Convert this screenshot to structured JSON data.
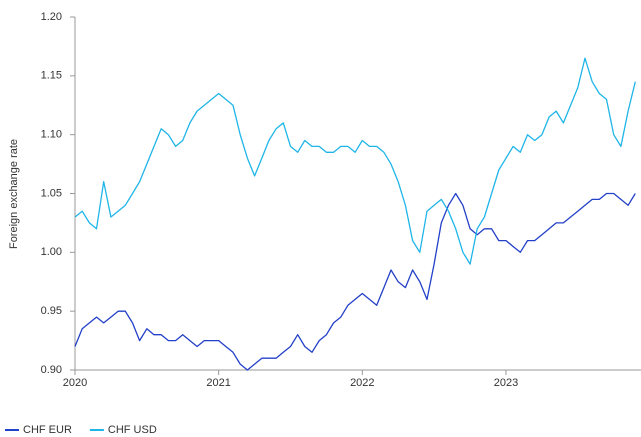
{
  "chart_data": {
    "type": "line",
    "y_label": "Foreign exchange rate",
    "x": [
      2020.0,
      2020.05,
      2020.1,
      2020.15,
      2020.2,
      2020.25,
      2020.3,
      2020.35,
      2020.4,
      2020.45,
      2020.5,
      2020.55,
      2020.6,
      2020.65,
      2020.7,
      2020.75,
      2020.8,
      2020.85,
      2020.9,
      2020.95,
      2021.0,
      2021.05,
      2021.1,
      2021.15,
      2021.2,
      2021.25,
      2021.3,
      2021.35,
      2021.4,
      2021.45,
      2021.5,
      2021.55,
      2021.6,
      2021.65,
      2021.7,
      2021.75,
      2021.8,
      2021.85,
      2021.9,
      2021.95,
      2022.0,
      2022.05,
      2022.1,
      2022.15,
      2022.2,
      2022.25,
      2022.3,
      2022.35,
      2022.4,
      2022.45,
      2022.5,
      2022.55,
      2022.6,
      2022.65,
      2022.7,
      2022.75,
      2022.8,
      2022.85,
      2022.9,
      2022.95,
      2023.0,
      2023.05,
      2023.1,
      2023.15,
      2023.2,
      2023.25,
      2023.3,
      2023.35,
      2023.4,
      2023.45,
      2023.5,
      2023.55,
      2023.6,
      2023.65,
      2023.7,
      2023.75,
      2023.8,
      2023.85,
      2023.9
    ],
    "series": [
      {
        "name": "CHF EUR",
        "color": "#2340c8",
        "values": [
          0.92,
          0.935,
          0.94,
          0.945,
          0.94,
          0.945,
          0.95,
          0.95,
          0.94,
          0.925,
          0.935,
          0.93,
          0.93,
          0.925,
          0.925,
          0.93,
          0.925,
          0.92,
          0.925,
          0.925,
          0.925,
          0.92,
          0.915,
          0.905,
          0.9,
          0.905,
          0.91,
          0.91,
          0.91,
          0.915,
          0.92,
          0.93,
          0.92,
          0.915,
          0.925,
          0.93,
          0.94,
          0.945,
          0.955,
          0.96,
          0.965,
          0.96,
          0.955,
          0.97,
          0.985,
          0.975,
          0.97,
          0.985,
          0.975,
          0.96,
          0.99,
          1.025,
          1.04,
          1.05,
          1.04,
          1.02,
          1.015,
          1.02,
          1.02,
          1.01,
          1.01,
          1.005,
          1.0,
          1.01,
          1.01,
          1.015,
          1.02,
          1.025,
          1.025,
          1.03,
          1.035,
          1.04,
          1.045,
          1.045,
          1.05,
          1.05,
          1.045,
          1.04,
          1.05
        ]
      },
      {
        "name": "CHF USD",
        "color": "#1fb5e8",
        "values": [
          1.03,
          1.035,
          1.025,
          1.02,
          1.06,
          1.03,
          1.035,
          1.04,
          1.05,
          1.06,
          1.075,
          1.09,
          1.105,
          1.1,
          1.09,
          1.095,
          1.11,
          1.12,
          1.125,
          1.13,
          1.135,
          1.13,
          1.125,
          1.1,
          1.08,
          1.065,
          1.08,
          1.095,
          1.105,
          1.11,
          1.09,
          1.085,
          1.095,
          1.09,
          1.09,
          1.085,
          1.085,
          1.09,
          1.09,
          1.085,
          1.095,
          1.09,
          1.09,
          1.085,
          1.075,
          1.06,
          1.04,
          1.01,
          1.0,
          1.035,
          1.04,
          1.045,
          1.035,
          1.02,
          1.0,
          0.99,
          1.02,
          1.03,
          1.05,
          1.07,
          1.08,
          1.09,
          1.085,
          1.1,
          1.095,
          1.1,
          1.115,
          1.12,
          1.11,
          1.125,
          1.14,
          1.165,
          1.145,
          1.135,
          1.13,
          1.1,
          1.09,
          1.12,
          1.145
        ]
      }
    ],
    "xlim": [
      2020,
      2023.94
    ],
    "xticks": [
      2020,
      2021,
      2022,
      2023
    ],
    "ylim": [
      0.9,
      1.2
    ],
    "yticks": [
      {
        "value": 0.9,
        "label": "0.90"
      },
      0.95,
      {
        "value": 1.0,
        "label": "1.00"
      },
      1.05,
      {
        "value": 1.1,
        "label": "1.10"
      },
      1.15,
      {
        "value": 1.2,
        "label": "1.20"
      }
    ],
    "legend": "bottom-left"
  }
}
